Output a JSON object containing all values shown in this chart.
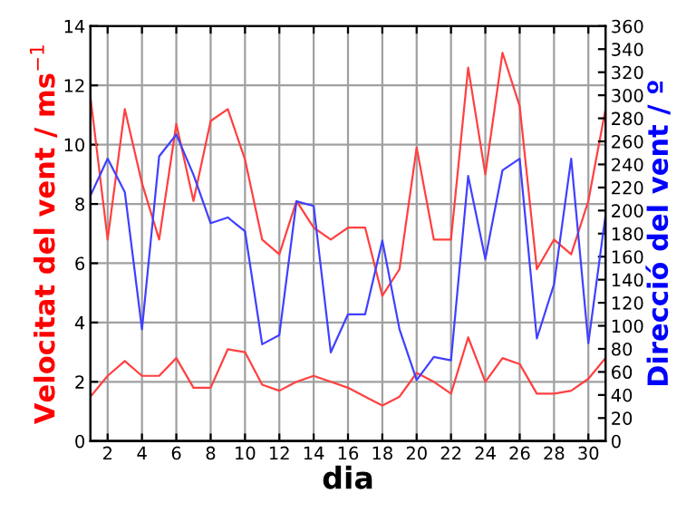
{
  "chart_data": {
    "type": "line",
    "xlabel": "dia",
    "ylabel": "Velocitat del vent / ms$^{−1}$",
    "y2label": "Direcció del vent / º",
    "x": [
      1,
      2,
      3,
      4,
      5,
      6,
      7,
      8,
      9,
      10,
      11,
      12,
      13,
      14,
      15,
      16,
      17,
      18,
      19,
      20,
      21,
      22,
      23,
      24,
      25,
      26,
      27,
      28,
      29,
      30,
      31
    ],
    "series": [
      {
        "color": "#ff4040",
        "values": [
          11.6,
          6.8,
          11.2,
          8.7,
          6.8,
          10.7,
          8.1,
          10.8,
          11.2,
          9.5,
          6.8,
          6.3,
          8.1,
          7.2,
          6.8,
          7.2,
          7.2,
          4.9,
          5.8,
          9.9,
          6.8,
          6.8,
          12.6,
          9.0,
          13.1,
          11.3,
          5.8,
          6.8,
          6.3,
          8.1,
          11.2
        ]
      },
      {
        "color": "#ff4040",
        "values": [
          1.5,
          2.2,
          2.7,
          2.2,
          2.2,
          2.8,
          1.8,
          1.8,
          3.1,
          3.0,
          1.9,
          1.7,
          2.0,
          2.2,
          2.0,
          1.8,
          1.5,
          1.2,
          1.5,
          2.3,
          2.0,
          1.6,
          3.5,
          2.0,
          2.8,
          2.6,
          1.6,
          1.6,
          1.7,
          2.1,
          2.8
        ]
      },
      {
        "color": "#4040ff",
        "axis": "y2",
        "values": [
          213,
          245,
          216,
          97,
          247,
          266,
          231,
          189,
          194,
          182,
          84,
          92,
          208,
          204,
          77,
          110,
          110,
          174,
          97,
          53,
          73,
          70,
          230,
          158,
          235,
          245,
          89,
          136,
          245,
          85,
          196
        ]
      }
    ],
    "xlim": [
      1,
      31
    ],
    "xticks": [
      2,
      4,
      6,
      8,
      10,
      12,
      14,
      16,
      18,
      20,
      22,
      24,
      26,
      28,
      30
    ],
    "ylim": [
      0,
      14
    ],
    "yticks": [
      0,
      2,
      4,
      6,
      8,
      10,
      12,
      14
    ],
    "y2lim": [
      0,
      360
    ],
    "y2ticks": [
      0,
      20,
      40,
      60,
      80,
      100,
      120,
      140,
      160,
      180,
      200,
      220,
      240,
      260,
      280,
      300,
      320,
      340,
      360
    ],
    "grid": true,
    "legend": false,
    "marker": "none",
    "line_style": "solid"
  }
}
